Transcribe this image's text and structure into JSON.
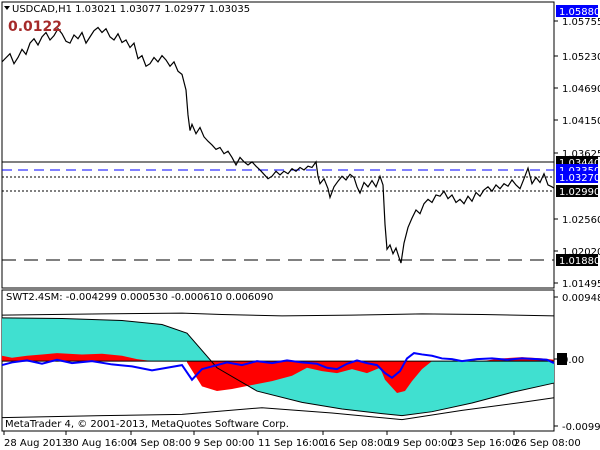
{
  "header": {
    "symbol_line": "USDCAD,H1  1.03021 1.03077 1.02977 1.03035",
    "spread_value": "0.0122",
    "menu_arrow_icon": "triangle-down-icon"
  },
  "main_axis": {
    "ticks": [
      "1.05880",
      "1.05755",
      "1.05230",
      "1.04690",
      "1.04150",
      "1.03625",
      "1.03440",
      "1.03350",
      "1.03270",
      "1.02990",
      "1.02560",
      "1.02020",
      "1.01880",
      "1.01495"
    ],
    "highlight": {
      "1.05880": "#0000ff",
      "1.03440": "#000000",
      "1.03350": "#0000ff",
      "1.03270": "#0000ff",
      "1.02990": "#000000",
      "1.01880": "#000000"
    }
  },
  "indicator": {
    "label": "SWT2.4SM: -0.004299 0.000530 -0.000610 0.006090",
    "axis_ticks": [
      "0.00948",
      "0.00",
      "-0.009901"
    ],
    "zero_badge": "0.00"
  },
  "time_axis": {
    "labels": [
      "28 Aug 2013",
      "30 Aug 16:00",
      "4 Sep 08:00",
      "9 Sep 00:00",
      "11 Sep 16:00",
      "16 Sep 08:00",
      "19 Sep 00:00",
      "23 Sep 16:00",
      "26 Sep 08:00"
    ]
  },
  "footer": {
    "copyright": "MetaTrader 4, © 2001-2013, MetaQuotes Software Corp."
  },
  "colors": {
    "price": "#000000",
    "cyan_band": "#40e0d0",
    "red_band": "#ff0000",
    "blue_line": "#0000ff",
    "spread": "#a52a2a"
  },
  "chart_data": {
    "type": "line",
    "title": "USDCAD,H1  1.03021 1.03077 1.02977 1.03035",
    "y_range": [
      1.01495,
      1.0588
    ],
    "series": [
      {
        "name": "USDCAD",
        "points": [
          [
            0,
            1.0505
          ],
          [
            3,
            1.051
          ],
          [
            8,
            1.0518
          ],
          [
            12,
            1.0502
          ],
          [
            16,
            1.0512
          ],
          [
            20,
            1.0525
          ],
          [
            24,
            1.0517
          ],
          [
            28,
            1.0535
          ],
          [
            32,
            1.0542
          ],
          [
            36,
            1.0532
          ],
          [
            40,
            1.0545
          ],
          [
            44,
            1.0552
          ],
          [
            48,
            1.054
          ],
          [
            52,
            1.0547
          ],
          [
            56,
            1.0558
          ],
          [
            60,
            1.055
          ],
          [
            64,
            1.0538
          ],
          [
            68,
            1.0535
          ],
          [
            72,
            1.0548
          ],
          [
            76,
            1.0542
          ],
          [
            80,
            1.0552
          ],
          [
            84,
            1.0535
          ],
          [
            88,
            1.0545
          ],
          [
            92,
            1.0555
          ],
          [
            96,
            1.056
          ],
          [
            100,
            1.0552
          ],
          [
            104,
            1.0558
          ],
          [
            108,
            1.0545
          ],
          [
            112,
            1.054
          ],
          [
            116,
            1.055
          ],
          [
            120,
            1.0536
          ],
          [
            124,
            1.054
          ],
          [
            128,
            1.0528
          ],
          [
            132,
            1.0535
          ],
          [
            136,
            1.051
          ],
          [
            140,
            1.0515
          ],
          [
            144,
            1.0498
          ],
          [
            148,
            1.0502
          ],
          [
            152,
            1.0512
          ],
          [
            156,
            1.0505
          ],
          [
            160,
            1.0515
          ],
          [
            164,
            1.0508
          ],
          [
            168,
            1.0498
          ],
          [
            172,
            1.0505
          ],
          [
            176,
            1.049
          ],
          [
            180,
            1.0485
          ],
          [
            184,
            1.046
          ],
          [
            186,
            1.042
          ],
          [
            188,
            1.0395
          ],
          [
            190,
            1.0405
          ],
          [
            194,
            1.039
          ],
          [
            198,
            1.04
          ],
          [
            202,
            1.0385
          ],
          [
            206,
            1.0378
          ],
          [
            210,
            1.0372
          ],
          [
            214,
            1.0365
          ],
          [
            218,
            1.0368
          ],
          [
            222,
            1.0358
          ],
          [
            226,
            1.0362
          ],
          [
            230,
            1.0352
          ],
          [
            234,
            1.034
          ],
          [
            238,
            1.0352
          ],
          [
            242,
            1.0345
          ],
          [
            246,
            1.034
          ],
          [
            250,
            1.0345
          ],
          [
            254,
            1.0338
          ],
          [
            258,
            1.0332
          ],
          [
            262,
            1.0325
          ],
          [
            266,
            1.0318
          ],
          [
            270,
            1.0322
          ],
          [
            274,
            1.033
          ],
          [
            278,
            1.0324
          ],
          [
            282,
            1.033
          ],
          [
            286,
            1.0326
          ],
          [
            290,
            1.0334
          ],
          [
            294,
            1.033
          ],
          [
            298,
            1.0336
          ],
          [
            302,
            1.0332
          ],
          [
            306,
            1.0338
          ],
          [
            310,
            1.0336
          ],
          [
            314,
            1.0345
          ],
          [
            316,
            1.0322
          ],
          [
            318,
            1.031
          ],
          [
            322,
            1.0318
          ],
          [
            326,
            1.0302
          ],
          [
            328,
            1.0288
          ],
          [
            332,
            1.0305
          ],
          [
            336,
            1.0314
          ],
          [
            340,
            1.0322
          ],
          [
            344,
            1.0316
          ],
          [
            348,
            1.0325
          ],
          [
            352,
            1.032
          ],
          [
            355,
            1.0305
          ],
          [
            358,
            1.0295
          ],
          [
            362,
            1.0312
          ],
          [
            366,
            1.0305
          ],
          [
            370,
            1.0315
          ],
          [
            374,
            1.0305
          ],
          [
            378,
            1.0322
          ],
          [
            381,
            1.0308
          ],
          [
            383,
            1.0245
          ],
          [
            385,
            1.0205
          ],
          [
            388,
            1.0212
          ],
          [
            391,
            1.0198
          ],
          [
            394,
            1.0207
          ],
          [
            397,
            1.0192
          ],
          [
            399,
            1.0183
          ],
          [
            402,
            1.0215
          ],
          [
            406,
            1.024
          ],
          [
            410,
            1.0255
          ],
          [
            414,
            1.0268
          ],
          [
            418,
            1.0262
          ],
          [
            422,
            1.0278
          ],
          [
            426,
            1.0285
          ],
          [
            430,
            1.028
          ],
          [
            434,
            1.0292
          ],
          [
            438,
            1.029
          ],
          [
            442,
            1.0298
          ],
          [
            446,
            1.0286
          ],
          [
            450,
            1.0292
          ],
          [
            454,
            1.028
          ],
          [
            458,
            1.0285
          ],
          [
            462,
            1.0278
          ],
          [
            466,
            1.029
          ],
          [
            470,
            1.0282
          ],
          [
            474,
            1.0296
          ],
          [
            478,
            1.029
          ],
          [
            482,
            1.03
          ],
          [
            486,
            1.0305
          ],
          [
            490,
            1.0298
          ],
          [
            494,
            1.0308
          ],
          [
            498,
            1.0302
          ],
          [
            502,
            1.031
          ],
          [
            506,
            1.0306
          ],
          [
            510,
            1.0316
          ],
          [
            514,
            1.0308
          ],
          [
            518,
            1.0302
          ],
          [
            522,
            1.0318
          ],
          [
            526,
            1.0335
          ],
          [
            530,
            1.031
          ],
          [
            534,
            1.032
          ],
          [
            538,
            1.0312
          ],
          [
            542,
            1.0326
          ],
          [
            546,
            1.0308
          ],
          [
            550,
            1.0305
          ],
          [
            552,
            1.0303
          ]
        ]
      }
    ],
    "horizontal_levels": [
      {
        "value": 1.0344,
        "style": "solid"
      },
      {
        "value": 1.0335,
        "style": "dashed",
        "color": "#0000ff"
      },
      {
        "value": 1.0327,
        "style": "dotted"
      },
      {
        "value": 1.0299,
        "style": "dotted"
      },
      {
        "value": 1.0188,
        "style": "dashed"
      }
    ],
    "indicator": {
      "y_range": [
        -0.009901,
        0.00948
      ],
      "upper_band": [
        [
          0,
          0.0065
        ],
        [
          60,
          0.0064
        ],
        [
          120,
          0.0061
        ],
        [
          160,
          0.0055
        ],
        [
          185,
          0.0042
        ],
        [
          215,
          -0.001
        ],
        [
          255,
          -0.0045
        ],
        [
          300,
          -0.0062
        ],
        [
          340,
          -0.0072
        ],
        [
          380,
          -0.0079
        ],
        [
          400,
          -0.0082
        ],
        [
          430,
          -0.0076
        ],
        [
          470,
          -0.0063
        ],
        [
          510,
          -0.0047
        ],
        [
          552,
          -0.0033
        ]
      ],
      "lower_band": [
        [
          0,
          -0.0008
        ],
        [
          60,
          -0.0005
        ],
        [
          120,
          -0.0002
        ],
        [
          160,
          0.0
        ],
        [
          185,
          0.0
        ],
        [
          215,
          0.0
        ],
        [
          255,
          0.0
        ],
        [
          300,
          0.0
        ],
        [
          340,
          0.0
        ],
        [
          380,
          0.0
        ],
        [
          400,
          0.0
        ],
        [
          430,
          0.0
        ],
        [
          470,
          0.0
        ],
        [
          510,
          0.0
        ],
        [
          552,
          0.0
        ]
      ],
      "red_segments": [
        [
          [
            0,
            0.0008
          ],
          [
            10,
            0.0005
          ],
          [
            25,
            0.0008
          ],
          [
            40,
            0.001
          ],
          [
            55,
            0.0012
          ],
          [
            80,
            0.001
          ],
          [
            100,
            0.0011
          ],
          [
            120,
            0.0008
          ],
          [
            135,
            0.0003
          ],
          [
            150,
            0.0
          ]
        ],
        [
          [
            185,
            -0.0002
          ],
          [
            200,
            -0.0038
          ],
          [
            215,
            -0.0045
          ],
          [
            230,
            -0.0042
          ],
          [
            250,
            -0.0036
          ],
          [
            270,
            -0.003
          ],
          [
            290,
            -0.0022
          ],
          [
            305,
            -0.001
          ],
          [
            320,
            -0.0015
          ],
          [
            335,
            -0.0018
          ],
          [
            350,
            -0.0012
          ],
          [
            365,
            -0.0018
          ],
          [
            378,
            -0.001
          ],
          [
            383,
            -0.0028
          ],
          [
            395,
            -0.0048
          ],
          [
            403,
            -0.0045
          ],
          [
            410,
            -0.003
          ],
          [
            420,
            -0.0012
          ],
          [
            430,
            0.0
          ]
        ],
        [
          [
            480,
            0.0
          ],
          [
            500,
            0.0004
          ],
          [
            520,
            0.0006
          ],
          [
            540,
            0.0004
          ],
          [
            552,
            0.0002
          ]
        ]
      ],
      "blue_line": [
        [
          0,
          -0.0006
        ],
        [
          10,
          -0.0002
        ],
        [
          25,
          0.0001
        ],
        [
          40,
          -0.0004
        ],
        [
          55,
          0.0002
        ],
        [
          70,
          -0.0003
        ],
        [
          90,
          0.0
        ],
        [
          110,
          -0.0005
        ],
        [
          130,
          -0.0008
        ],
        [
          150,
          -0.0014
        ],
        [
          165,
          -0.001
        ],
        [
          180,
          -0.0006
        ],
        [
          190,
          -0.0028
        ],
        [
          200,
          -0.0012
        ],
        [
          210,
          -0.0008
        ],
        [
          225,
          -0.0002
        ],
        [
          240,
          -0.0006
        ],
        [
          255,
          0.0
        ],
        [
          270,
          -0.0003
        ],
        [
          285,
          0.0001
        ],
        [
          300,
          -0.0002
        ],
        [
          315,
          -0.0004
        ],
        [
          325,
          -0.001
        ],
        [
          335,
          -0.0012
        ],
        [
          345,
          -0.0004
        ],
        [
          355,
          0.0001
        ],
        [
          365,
          -0.0003
        ],
        [
          375,
          -0.0006
        ],
        [
          383,
          -0.0018
        ],
        [
          390,
          -0.0025
        ],
        [
          398,
          -0.0015
        ],
        [
          405,
          0.0004
        ],
        [
          412,
          0.0012
        ],
        [
          420,
          0.001
        ],
        [
          430,
          0.0008
        ],
        [
          440,
          0.0004
        ],
        [
          450,
          0.0003
        ],
        [
          460,
          0.0
        ],
        [
          475,
          0.0003
        ],
        [
          490,
          0.0004
        ],
        [
          505,
          0.0002
        ],
        [
          520,
          0.0004
        ],
        [
          535,
          0.0003
        ],
        [
          545,
          0.0002
        ],
        [
          552,
          -0.0003
        ]
      ],
      "outer_upper": [
        [
          0,
          0.0069
        ],
        [
          100,
          0.0071
        ],
        [
          180,
          0.0072
        ],
        [
          220,
          0.007
        ],
        [
          280,
          0.0068
        ],
        [
          350,
          0.0069
        ],
        [
          420,
          0.0071
        ],
        [
          480,
          0.007
        ],
        [
          552,
          0.0068
        ]
      ],
      "outer_lower": [
        [
          0,
          -0.0085
        ],
        [
          100,
          -0.0082
        ],
        [
          180,
          -0.008
        ],
        [
          260,
          -0.007
        ],
        [
          330,
          -0.0078
        ],
        [
          400,
          -0.0088
        ],
        [
          460,
          -0.0074
        ],
        [
          520,
          -0.0062
        ],
        [
          552,
          -0.0055
        ]
      ]
    }
  }
}
